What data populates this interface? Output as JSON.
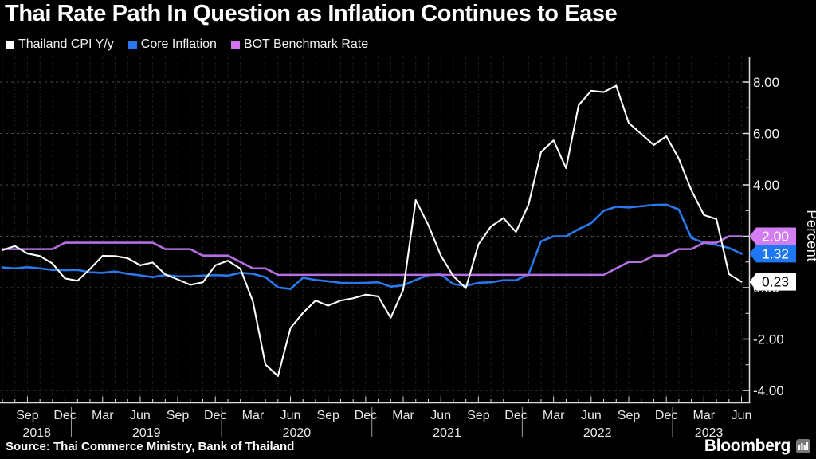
{
  "title": "Thai Rate Path In Question as Inflation Continues to Ease",
  "legend": {
    "items": [
      {
        "label": "Thailand CPI Y/y",
        "color": "#ffffff"
      },
      {
        "label": "Core Inflation",
        "color": "#2a78ee"
      },
      {
        "label": "BOT Benchmark Rate",
        "color": "#d373f0"
      }
    ]
  },
  "source": "Source: Thai Commerce Ministry, Bank of Thailand",
  "brand": {
    "name": "Bloomberg",
    "logo_icon": "bar-chart-icon"
  },
  "chart_data": {
    "type": "line",
    "title": "Thai Rate Path In Question as Inflation Continues to Ease",
    "xlabel": "",
    "ylabel": "Percent",
    "ylim": [
      -4.5,
      9.05
    ],
    "x_start_month": "2018-07",
    "x_end_month": "2023-06",
    "months_per_point": 1,
    "grid": {
      "horizontal": true,
      "vertical_monthly": true
    },
    "y_axis_side": "right",
    "y_major_ticks": [
      8,
      6,
      4,
      2,
      0,
      -2,
      -4
    ],
    "y_tick_labels": [
      "8.00",
      "6.00",
      "4.00",
      "2.00",
      "0.00",
      "-2.00",
      "-4.00"
    ],
    "y_minor_ticks": [
      7,
      5,
      3,
      1,
      -1,
      -3
    ],
    "x_quarter_ticks": [
      {
        "month_index": 2,
        "label": "Sep"
      },
      {
        "month_index": 5,
        "label": "Dec"
      },
      {
        "month_index": 8,
        "label": "Mar"
      },
      {
        "month_index": 11,
        "label": "Jun"
      },
      {
        "month_index": 14,
        "label": "Sep"
      },
      {
        "month_index": 17,
        "label": "Dec"
      },
      {
        "month_index": 20,
        "label": "Mar"
      },
      {
        "month_index": 23,
        "label": "Jun"
      },
      {
        "month_index": 26,
        "label": "Sep"
      },
      {
        "month_index": 29,
        "label": "Dec"
      },
      {
        "month_index": 32,
        "label": "Mar"
      },
      {
        "month_index": 35,
        "label": "Jun"
      },
      {
        "month_index": 38,
        "label": "Sep"
      },
      {
        "month_index": 41,
        "label": "Dec"
      },
      {
        "month_index": 44,
        "label": "Mar"
      },
      {
        "month_index": 47,
        "label": "Jun"
      },
      {
        "month_index": 50,
        "label": "Sep"
      },
      {
        "month_index": 53,
        "label": "Dec"
      },
      {
        "month_index": 56,
        "label": "Mar"
      },
      {
        "month_index": 59,
        "label": "Jun"
      }
    ],
    "x_year_labels": [
      {
        "label": "2018",
        "mid_month_index": 2.75
      },
      {
        "label": "2019",
        "mid_month_index": 11.5
      },
      {
        "label": "2020",
        "mid_month_index": 23.5
      },
      {
        "label": "2021",
        "mid_month_index": 35.5
      },
      {
        "label": "2022",
        "mid_month_index": 47.5
      },
      {
        "label": "2023",
        "mid_month_index": 56.4
      }
    ],
    "x_year_dividers_month_index": [
      5.5,
      17.5,
      29.5,
      41.5,
      53.5
    ],
    "series": [
      {
        "name": "Thailand CPI Y/y",
        "color": "#ffffff",
        "width": 2.1,
        "values": [
          1.46,
          1.62,
          1.33,
          1.23,
          0.94,
          0.36,
          0.27,
          0.73,
          1.24,
          1.23,
          1.15,
          0.87,
          0.98,
          0.52,
          0.32,
          0.11,
          0.21,
          0.87,
          1.05,
          0.74,
          -0.54,
          -2.99,
          -3.44,
          -1.57,
          -0.98,
          -0.5,
          -0.7,
          -0.5,
          -0.41,
          -0.27,
          -0.34,
          -1.17,
          -0.08,
          3.41,
          2.44,
          1.25,
          0.45,
          -0.02,
          1.68,
          2.38,
          2.71,
          2.17,
          3.23,
          5.28,
          5.73,
          4.65,
          7.1,
          7.66,
          7.61,
          7.86,
          6.41,
          5.98,
          5.55,
          5.89,
          5.02,
          3.79,
          2.83,
          2.67,
          0.53,
          0.23
        ]
      },
      {
        "name": "Core Inflation",
        "color": "#2a78ee",
        "width": 2.6,
        "values": [
          0.79,
          0.75,
          0.8,
          0.75,
          0.69,
          0.68,
          0.69,
          0.6,
          0.58,
          0.63,
          0.54,
          0.48,
          0.41,
          0.49,
          0.44,
          0.44,
          0.47,
          0.49,
          0.47,
          0.58,
          0.54,
          0.41,
          0.01,
          -0.05,
          0.39,
          0.3,
          0.25,
          0.19,
          0.18,
          0.19,
          0.21,
          0.04,
          0.09,
          0.3,
          0.49,
          0.52,
          0.14,
          0.07,
          0.19,
          0.21,
          0.29,
          0.29,
          0.52,
          1.8,
          2.0,
          2.0,
          2.28,
          2.51,
          2.99,
          3.15,
          3.12,
          3.17,
          3.22,
          3.23,
          3.04,
          1.93,
          1.75,
          1.66,
          1.55,
          1.32
        ]
      },
      {
        "name": "BOT Benchmark Rate",
        "color": "#b46fe2",
        "width": 2.6,
        "values": [
          1.5,
          1.5,
          1.5,
          1.5,
          1.5,
          1.75,
          1.75,
          1.75,
          1.75,
          1.75,
          1.75,
          1.75,
          1.75,
          1.5,
          1.5,
          1.5,
          1.25,
          1.25,
          1.25,
          1.0,
          0.75,
          0.75,
          0.5,
          0.5,
          0.5,
          0.5,
          0.5,
          0.5,
          0.5,
          0.5,
          0.5,
          0.5,
          0.5,
          0.5,
          0.5,
          0.5,
          0.5,
          0.5,
          0.5,
          0.5,
          0.5,
          0.5,
          0.5,
          0.5,
          0.5,
          0.5,
          0.5,
          0.5,
          0.5,
          0.75,
          1.0,
          1.0,
          1.25,
          1.25,
          1.5,
          1.5,
          1.75,
          1.75,
          2.0,
          2.0
        ]
      }
    ],
    "end_labels": [
      {
        "text": "2.00",
        "value": 2.0,
        "bg": "#d47cf2",
        "fg": "#ffffff"
      },
      {
        "text": "1.32",
        "value": 1.32,
        "bg": "#1f78f2",
        "fg": "#ffffff"
      },
      {
        "text": "0.23",
        "value": 0.23,
        "bg": "#ffffff",
        "fg": "#000000"
      }
    ]
  }
}
